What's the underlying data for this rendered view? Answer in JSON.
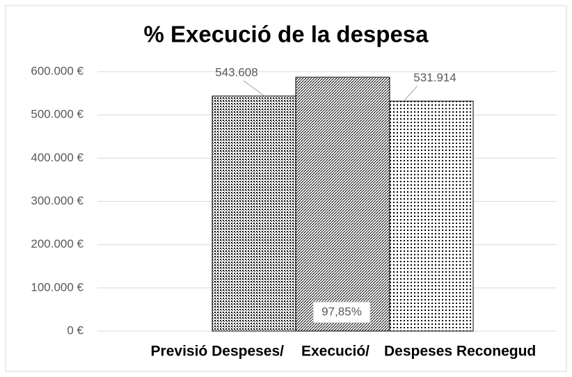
{
  "chart_data": {
    "type": "bar",
    "title": "% Execució de la despesa",
    "categories": [
      "Previsió Despeses/",
      "Execució/",
      "Despeses Reconegud"
    ],
    "series": [
      {
        "color": "#000000",
        "pattern": "dots",
        "values": [
          543608,
          null,
          null
        ],
        "value_labels": [
          "543.608",
          null,
          null
        ]
      },
      {
        "color": "#000000",
        "pattern": "diagonal",
        "axis": "y2",
        "values": [
          null,
          97.85,
          null
        ],
        "value_labels": [
          null,
          "97,85%",
          null
        ]
      },
      {
        "color": "#000000",
        "pattern": "small-dots",
        "values": [
          null,
          null,
          531914
        ],
        "value_labels": [
          null,
          null,
          "531.914"
        ]
      }
    ],
    "ylim": [
      0,
      600000
    ],
    "yticks": [
      {
        "value": 0,
        "label": "0 €"
      },
      {
        "value": 100000,
        "label": "100.000 €"
      },
      {
        "value": 200000,
        "label": "200.000 €"
      },
      {
        "value": 300000,
        "label": "300.000 €"
      },
      {
        "value": 400000,
        "label": "400.000 €"
      },
      {
        "value": 500000,
        "label": "500.000 €"
      },
      {
        "value": 600000,
        "label": "600.000 €"
      }
    ],
    "y2lim": [
      0,
      100
    ],
    "grid": true
  }
}
